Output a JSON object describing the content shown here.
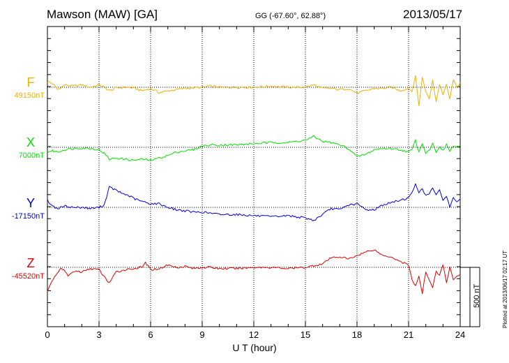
{
  "header": {
    "station": "Mawson (MAW)  [GA]",
    "coords": "GG (-67.60°,  62.88°)",
    "date": "2013/05/17"
  },
  "footer": {
    "plotted": "Plotted at 2013/06/17 02:17 UT",
    "scale_label": "500 nT"
  },
  "colors": {
    "F": "#f0b000",
    "X": "#00e000",
    "Y": "#0000e0",
    "Z": "#e00000"
  },
  "chart_data": {
    "type": "line",
    "title": "Mawson (MAW)  [GA]  2013/05/17",
    "xlabel": "U T (hour)",
    "ylabel": "",
    "xlim": [
      0,
      24
    ],
    "x_ticks": [
      0,
      3,
      6,
      9,
      12,
      15,
      18,
      21,
      24
    ],
    "x_tick_labels": [
      "0",
      "3",
      "6",
      "9",
      "12",
      "15",
      "18",
      "21",
      "24"
    ],
    "scale_bar_nT": 500,
    "grid": true,
    "series": [
      {
        "name": "F",
        "baseline_label": "49150nT",
        "baseline_nT": 49150,
        "x": [
          0,
          0.3,
          0.6,
          1,
          1.5,
          2,
          2.5,
          3,
          3.3,
          3.6,
          4,
          4.5,
          5,
          5.5,
          6,
          6.5,
          7,
          7.5,
          8,
          8.5,
          9,
          9.5,
          10,
          11,
          12,
          13,
          14,
          15,
          15.5,
          16,
          16.5,
          17,
          17.5,
          18,
          18.5,
          19,
          19.5,
          20,
          20.5,
          21,
          21.2,
          21.4,
          21.6,
          21.8,
          22,
          22.2,
          22.4,
          22.6,
          22.8,
          23,
          23.2,
          23.4,
          23.6,
          23.8,
          24
        ],
        "values": [
          50,
          30,
          -20,
          20,
          10,
          20,
          0,
          20,
          0,
          -30,
          -5,
          0,
          -5,
          -30,
          -10,
          -45,
          -30,
          -20,
          -10,
          -5,
          0,
          10,
          0,
          0,
          0,
          10,
          0,
          0,
          20,
          -10,
          -10,
          -20,
          -10,
          -50,
          -30,
          -10,
          -10,
          0,
          -30,
          -10,
          -30,
          90,
          -150,
          80,
          -30,
          -100,
          60,
          -120,
          30,
          -60,
          20,
          -90,
          60,
          0,
          40
        ]
      },
      {
        "name": "X",
        "baseline_label": "7000nT",
        "baseline_nT": 7000,
        "x": [
          0,
          0.3,
          0.6,
          1,
          1.5,
          2,
          2.5,
          3,
          3.3,
          3.6,
          4,
          4.5,
          5,
          5.5,
          6,
          6.5,
          7,
          7.5,
          8,
          8.5,
          9,
          9.5,
          10,
          11,
          12,
          13,
          14,
          15,
          15.5,
          16,
          16.5,
          17,
          17.5,
          18,
          18.5,
          19,
          19.5,
          20,
          20.5,
          21,
          21.2,
          21.4,
          21.6,
          21.8,
          22,
          22.2,
          22.4,
          22.6,
          22.8,
          23,
          23.2,
          23.4,
          23.6,
          23.8,
          24
        ],
        "values": [
          -40,
          -30,
          -40,
          -20,
          -10,
          -5,
          -10,
          -20,
          -50,
          -100,
          -90,
          -100,
          -110,
          -100,
          -110,
          -90,
          -70,
          -40,
          -30,
          -20,
          10,
          20,
          20,
          20,
          30,
          40,
          40,
          60,
          90,
          50,
          40,
          20,
          -10,
          -80,
          -60,
          -20,
          -10,
          -10,
          -20,
          -40,
          -20,
          60,
          -40,
          40,
          -50,
          -20,
          30,
          -40,
          10,
          -30,
          20,
          -30,
          10,
          0,
          -10
        ]
      },
      {
        "name": "Y",
        "baseline_label": "-17150nT",
        "baseline_nT": -17150,
        "x": [
          0,
          0.3,
          0.6,
          1,
          1.5,
          2,
          2.5,
          3,
          3.3,
          3.6,
          3.9,
          4.3,
          4.7,
          5.1,
          5.5,
          6,
          6.5,
          7,
          7.5,
          8,
          8.5,
          9,
          9.5,
          10,
          11,
          12,
          13,
          14,
          15,
          15.5,
          16,
          16.5,
          17,
          17.5,
          18,
          18.5,
          19,
          19.5,
          20,
          20.5,
          21,
          21.2,
          21.4,
          21.6,
          21.8,
          22,
          22.2,
          22.4,
          22.6,
          22.8,
          23,
          23.2,
          23.4,
          23.6,
          23.8,
          24
        ],
        "values": [
          60,
          10,
          -10,
          10,
          0,
          0,
          -10,
          0,
          20,
          170,
          150,
          120,
          100,
          70,
          50,
          30,
          30,
          0,
          -20,
          -30,
          -40,
          -40,
          -50,
          -60,
          -60,
          -70,
          -80,
          -70,
          -90,
          -110,
          -60,
          -10,
          -20,
          20,
          30,
          -20,
          -20,
          20,
          40,
          60,
          80,
          120,
          200,
          130,
          150,
          100,
          120,
          170,
          100,
          140,
          60,
          100,
          0,
          80,
          50,
          70
        ]
      },
      {
        "name": "Z",
        "baseline_label": "-45520nT",
        "baseline_nT": -45520,
        "x": [
          0,
          0.2,
          0.5,
          0.8,
          1.2,
          1.6,
          2,
          2.5,
          3,
          3.3,
          3.6,
          4,
          4.5,
          5,
          5.5,
          5.7,
          6,
          6.5,
          7,
          7.5,
          8,
          8.5,
          9,
          9.5,
          10,
          11,
          12,
          13,
          14,
          15,
          16,
          16.5,
          17,
          17.5,
          18,
          18.5,
          19,
          19.5,
          20,
          20.5,
          21,
          21.2,
          21.4,
          21.6,
          21.8,
          22,
          22.2,
          22.4,
          22.6,
          22.8,
          23,
          23.2,
          23.4,
          23.6,
          23.8,
          24
        ],
        "values": [
          -200,
          -130,
          -70,
          0,
          -70,
          -30,
          -40,
          -10,
          -20,
          -80,
          -130,
          -40,
          -20,
          -10,
          0,
          40,
          -20,
          -10,
          20,
          0,
          10,
          -10,
          0,
          0,
          -10,
          -10,
          0,
          0,
          -10,
          0,
          30,
          80,
          90,
          70,
          100,
          130,
          150,
          100,
          90,
          50,
          20,
          -100,
          -160,
          -80,
          -220,
          -40,
          -100,
          -170,
          -30,
          -70,
          20,
          -130,
          0,
          -110,
          -70,
          -60
        ]
      }
    ]
  }
}
